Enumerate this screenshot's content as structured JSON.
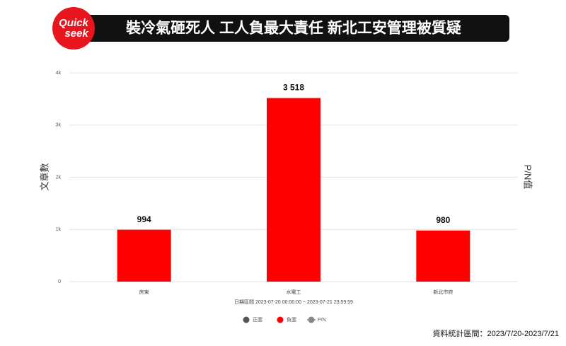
{
  "logo": {
    "line1": "Quick",
    "line2": "seek"
  },
  "chart_data": {
    "type": "bar",
    "title": "裝冷氣砸死人  工人負最大責任  新北工安管理被質疑",
    "categories": [
      "房東",
      "水電工",
      "新北市府"
    ],
    "series": [
      {
        "name": "正面",
        "color": "#555555",
        "values": [
          null,
          null,
          null
        ]
      },
      {
        "name": "負面",
        "color": "#ff0000",
        "values": [
          994,
          3518,
          980
        ],
        "value_labels": [
          "994",
          "3 518",
          "980"
        ]
      },
      {
        "name": "P/N",
        "color": "#888888",
        "values": [
          null,
          null,
          null
        ]
      }
    ],
    "ylim": [
      0,
      4000
    ],
    "yticks": [
      0,
      {
        "value": 1000,
        "label": "1k"
      },
      {
        "value": 2000,
        "label": "2k"
      },
      {
        "value": 3000,
        "label": "3k"
      },
      {
        "value": 4000,
        "label": "4k"
      }
    ],
    "y_label": "文章數",
    "y2_label": "P/N值",
    "x_label": "日期區間 2023-07-20 00:00:00 ~ 2023-07-21 23:59:59",
    "grid": true,
    "footnote": "資料統計區間：2023/7/20-2023/7/21"
  }
}
